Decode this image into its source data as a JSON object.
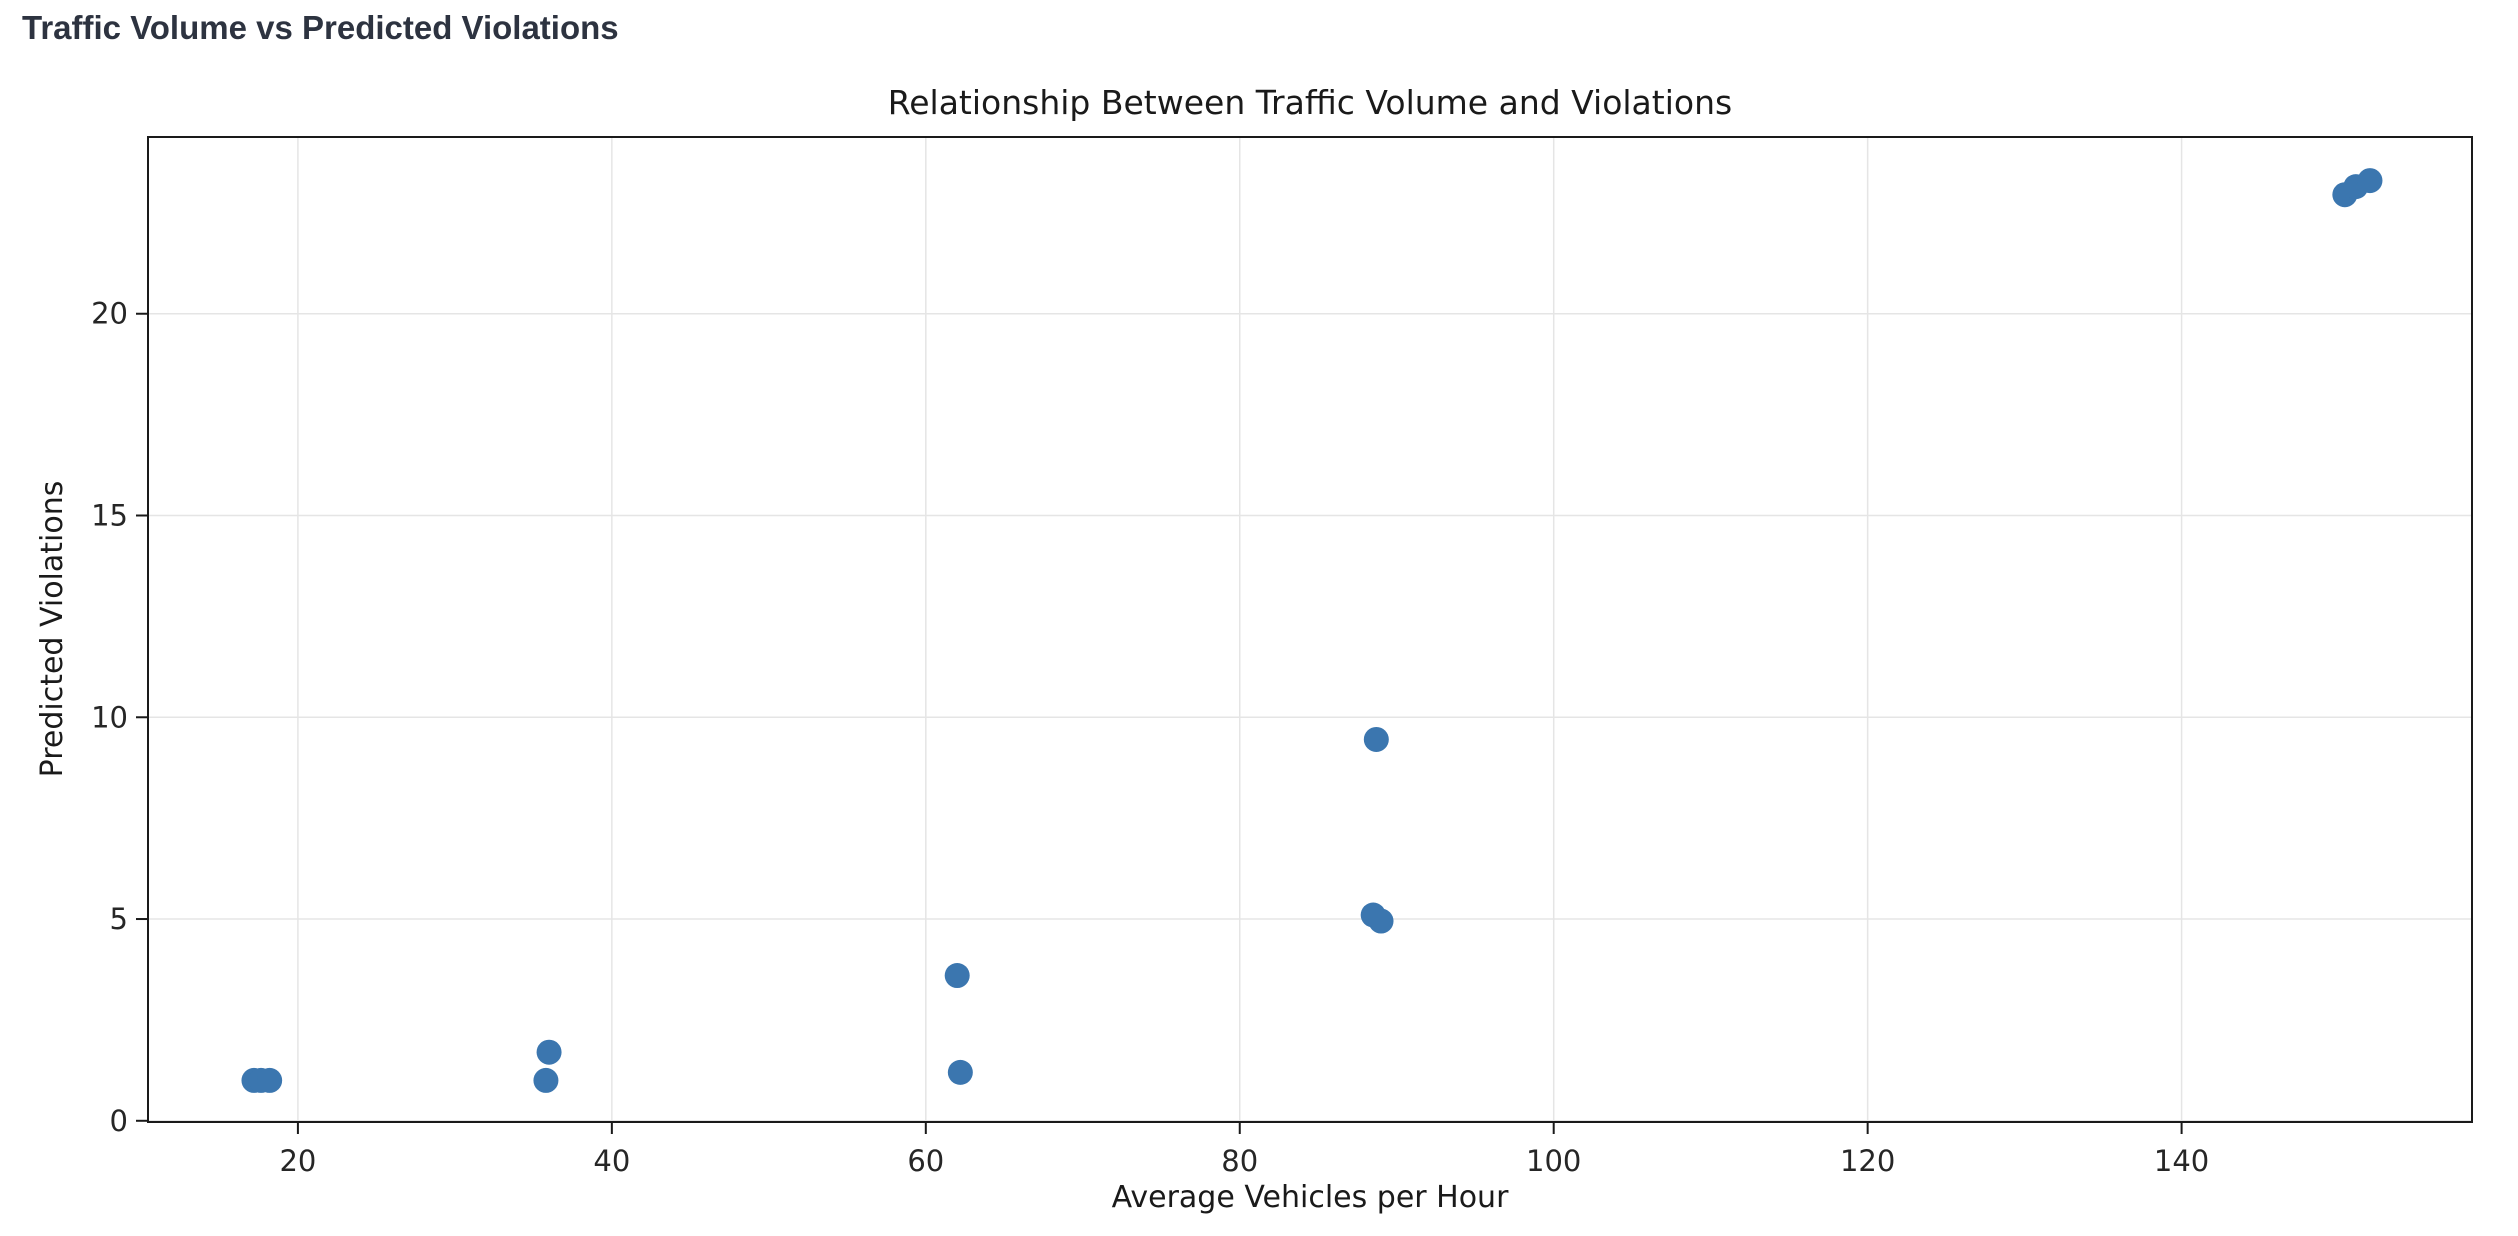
{
  "page": {
    "heading": "Traffic Volume vs Predicted Violations"
  },
  "chart_data": {
    "type": "scatter",
    "title": "Relationship Between Traffic Volume and Violations",
    "xlabel": "Average Vehicles per Hour",
    "ylabel": "Predicted Violations",
    "xlim": [
      10.45,
      158.5
    ],
    "ylim": [
      -0.03,
      24.38
    ],
    "xticks": [
      20,
      40,
      60,
      80,
      100,
      120,
      140
    ],
    "yticks": [
      0,
      5,
      10,
      15,
      20
    ],
    "grid": true,
    "legend": "none",
    "marker_color": "#3b76af",
    "marker_radius_px": 12.5,
    "points": [
      {
        "x": 17.2,
        "y": 1.0
      },
      {
        "x": 17.65,
        "y": 1.0
      },
      {
        "x": 18.2,
        "y": 1.0
      },
      {
        "x": 35.8,
        "y": 1.0
      },
      {
        "x": 36.0,
        "y": 1.7
      },
      {
        "x": 62.0,
        "y": 3.6
      },
      {
        "x": 62.2,
        "y": 1.2
      },
      {
        "x": 88.5,
        "y": 5.1
      },
      {
        "x": 89.0,
        "y": 4.95
      },
      {
        "x": 88.7,
        "y": 9.45
      },
      {
        "x": 150.4,
        "y": 22.95
      },
      {
        "x": 151.1,
        "y": 23.15
      },
      {
        "x": 152.0,
        "y": 23.3
      }
    ]
  }
}
